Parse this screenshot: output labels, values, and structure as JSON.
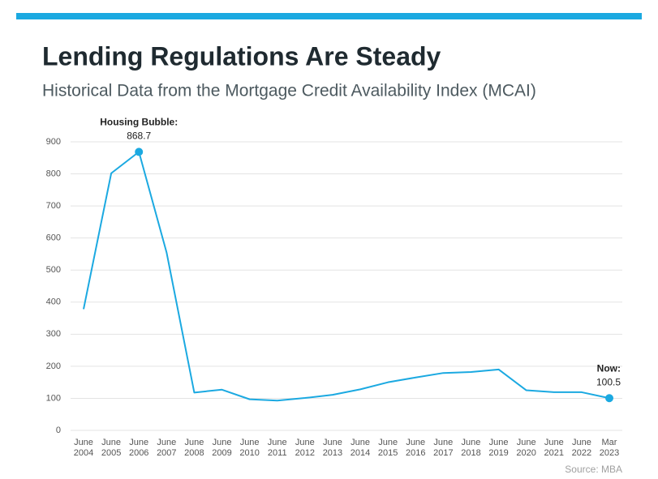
{
  "chart_data": {
    "type": "line",
    "title": "Lending Regulations Are Steady",
    "subtitle": "Historical Data from the Mortgage Credit Availability Index (MCAI)",
    "categories": [
      "June 2004",
      "June 2005",
      "June 2006",
      "June 2007",
      "June 2008",
      "June 2009",
      "June 2010",
      "June 2011",
      "June 2012",
      "June 2013",
      "June 2014",
      "June 2015",
      "June 2016",
      "June 2017",
      "June 2018",
      "June 2019",
      "June 2020",
      "June 2021",
      "June 2022",
      "Mar 2023"
    ],
    "series": [
      {
        "name": "MCAI",
        "color": "#1ba9e1",
        "values": [
          378,
          802,
          868.7,
          555,
          118,
          127,
          97,
          93,
          101,
          111,
          128,
          150,
          165,
          179,
          182,
          190,
          125,
          119,
          119,
          100.5
        ]
      }
    ],
    "ylim": [
      0,
      900
    ],
    "yticks": [
      0,
      100,
      200,
      300,
      400,
      500,
      600,
      700,
      800,
      900
    ],
    "grid": true,
    "annotations": [
      {
        "text": "Housing Bubble:",
        "category": "June 2006"
      },
      {
        "text": "Now:",
        "category": "Mar 2023"
      }
    ],
    "source": "Source: MBA"
  }
}
